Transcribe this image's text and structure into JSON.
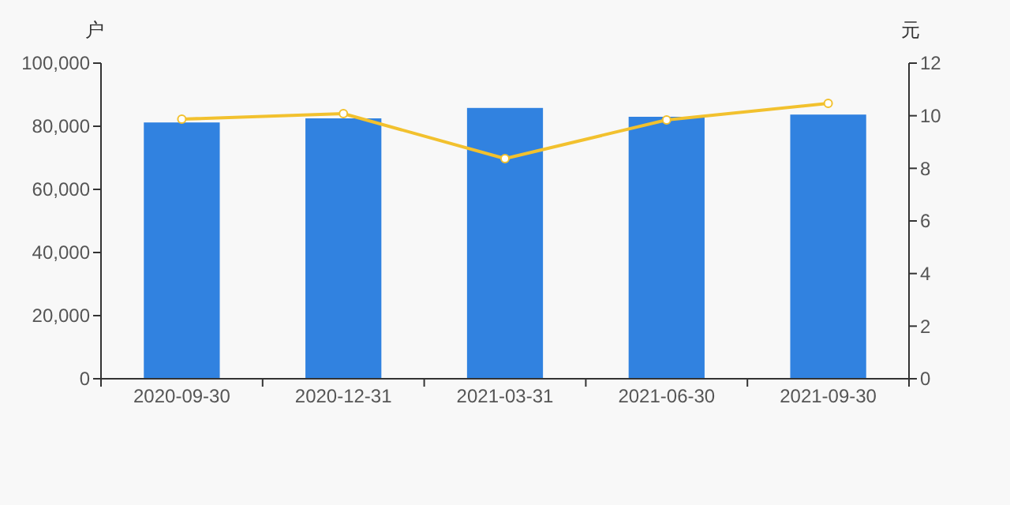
{
  "chart_data": {
    "type": "bar",
    "ylabel": "户",
    "y2label": "元",
    "categories": [
      "2020-09-30",
      "2020-12-31",
      "2021-03-31",
      "2021-06-30",
      "2021-09-30"
    ],
    "series": [
      {
        "color": "#3182e0",
        "values": [
          81200,
          82500,
          85800,
          83000,
          83700
        ]
      },
      {
        "type": "line",
        "axis": "y2",
        "color": "#f2c12e",
        "values": [
          9.87,
          10.08,
          8.37,
          9.84,
          10.47
        ]
      }
    ],
    "ylim": [
      0,
      100000
    ],
    "yticks": [
      {
        "value": 0,
        "label": "0"
      },
      {
        "value": 20000,
        "label": "20,000"
      },
      {
        "value": 40000,
        "label": "40,000"
      },
      {
        "value": 60000,
        "label": "60,000"
      },
      {
        "value": 80000,
        "label": "80,000"
      },
      {
        "value": 100000,
        "label": "100,000"
      }
    ],
    "y2lim": [
      0,
      12
    ],
    "y2ticks": [
      0,
      2,
      4,
      6,
      8,
      10,
      12
    ],
    "grid": false,
    "marker": "circle"
  }
}
